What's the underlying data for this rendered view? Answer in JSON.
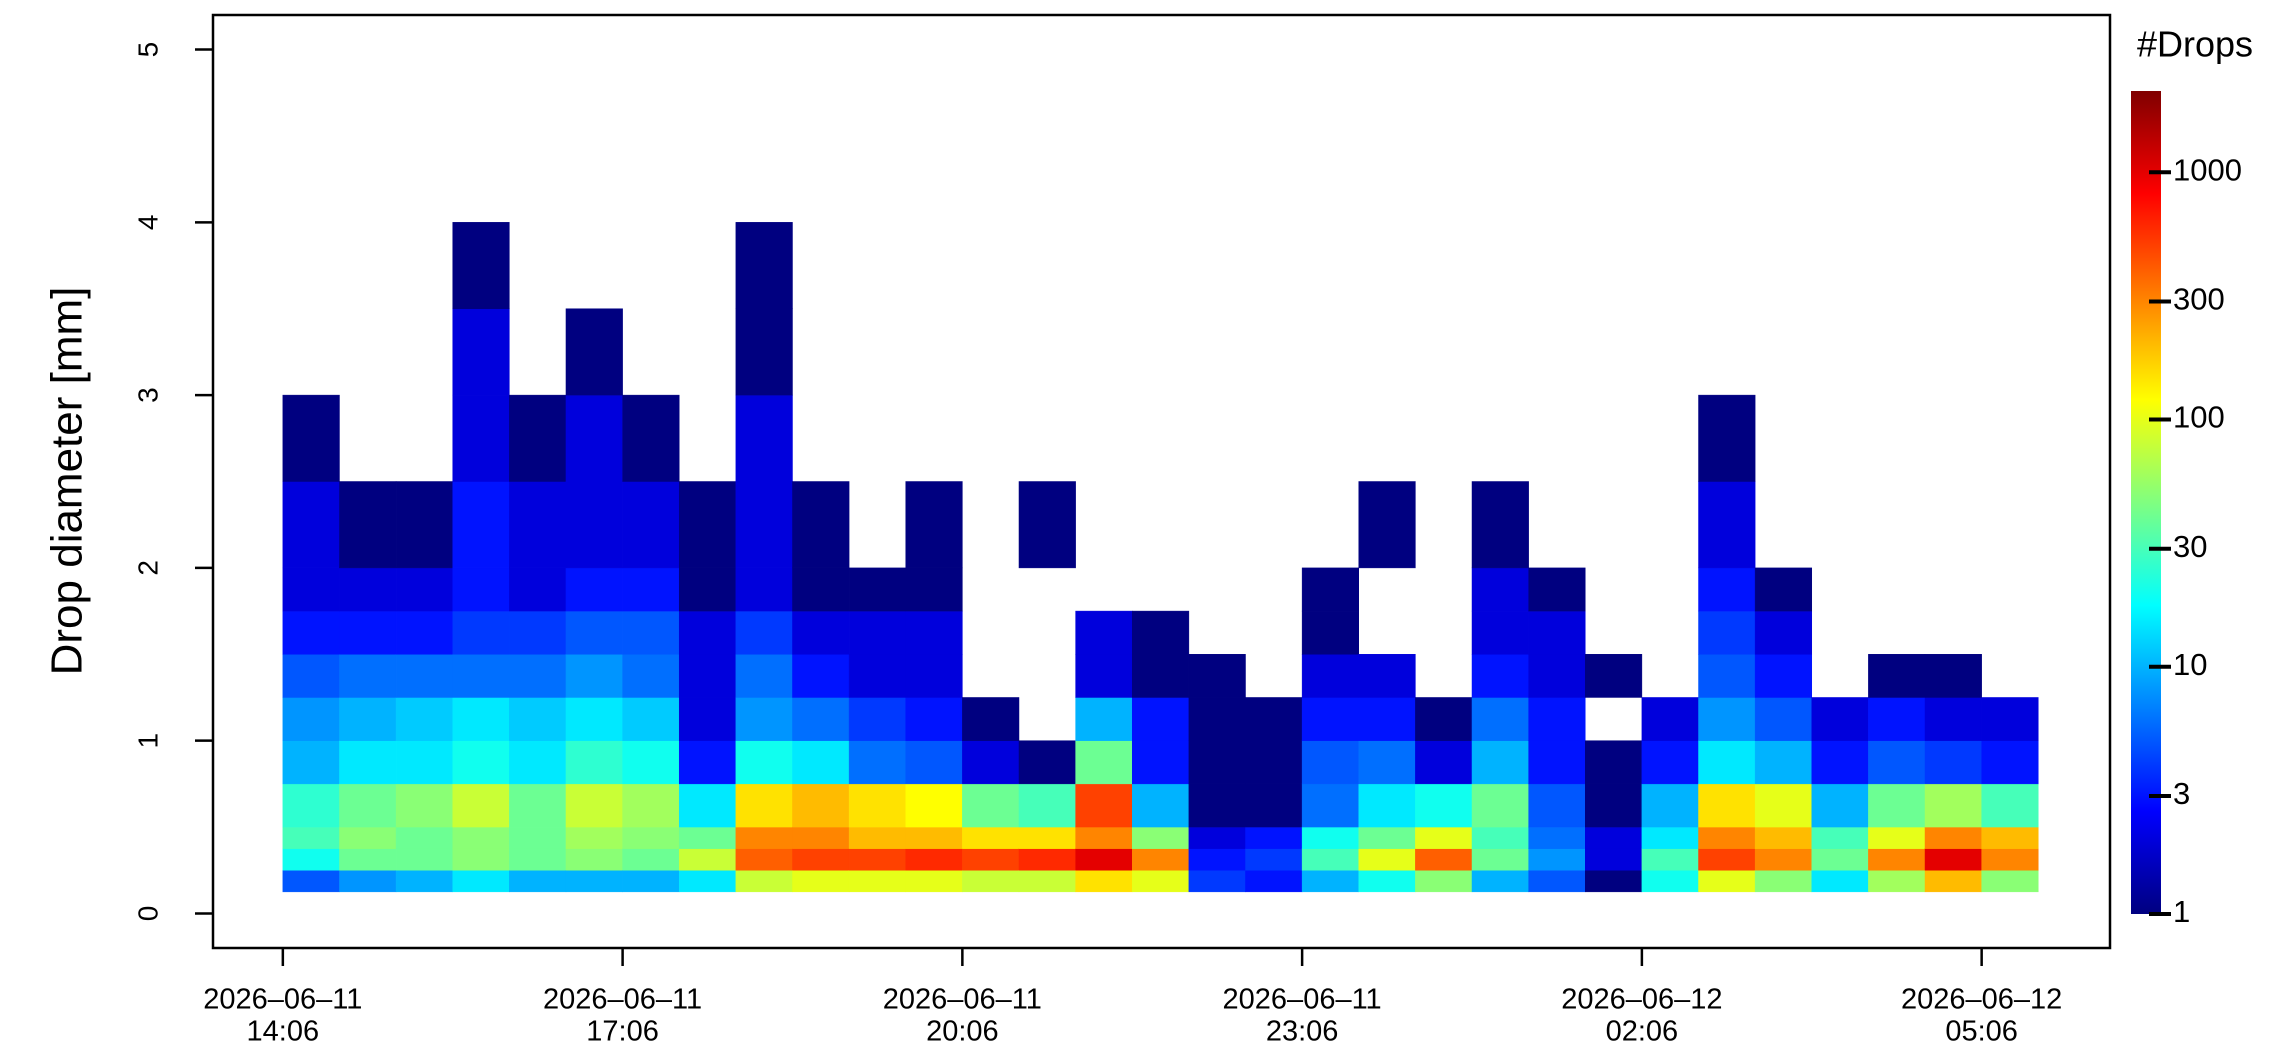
{
  "chart_data": {
    "type": "heatmap",
    "ylabel": "Drop diameter [mm]",
    "colorbar_title": "#Drops",
    "x_edges": [
      "2026-06-11 14:06",
      "2026-06-11 14:36",
      "2026-06-11 15:06",
      "2026-06-11 15:36",
      "2026-06-11 16:06",
      "2026-06-11 16:36",
      "2026-06-11 17:06",
      "2026-06-11 17:36",
      "2026-06-11 18:06",
      "2026-06-11 18:36",
      "2026-06-11 19:06",
      "2026-06-11 19:36",
      "2026-06-11 20:06",
      "2026-06-11 20:36",
      "2026-06-11 21:06",
      "2026-06-11 21:36",
      "2026-06-11 22:06",
      "2026-06-11 22:36",
      "2026-06-11 23:06",
      "2026-06-11 23:36",
      "2026-06-12 00:06",
      "2026-06-12 00:36",
      "2026-06-12 01:06",
      "2026-06-12 01:36",
      "2026-06-12 02:06",
      "2026-06-12 02:36",
      "2026-06-12 03:06",
      "2026-06-12 03:36",
      "2026-06-12 04:06",
      "2026-06-12 04:36",
      "2026-06-12 05:06",
      "2026-06-12 05:36"
    ],
    "y_bins": [
      0.125,
      0.25,
      0.375,
      0.5,
      0.75,
      1.0,
      1.25,
      1.5,
      1.75,
      2.0,
      2.5,
      3.0,
      3.5,
      4.0
    ],
    "z": [
      [
        5,
        20,
        30,
        25,
        10,
        8,
        5,
        3,
        2,
        2,
        1,
        null,
        null
      ],
      [
        8,
        40,
        50,
        40,
        15,
        10,
        6,
        3,
        2,
        1,
        null,
        null,
        null
      ],
      [
        10,
        40,
        40,
        50,
        15,
        12,
        6,
        3,
        2,
        1,
        null,
        null,
        null
      ],
      [
        15,
        50,
        50,
        80,
        20,
        15,
        6,
        4,
        3,
        3,
        2,
        2,
        1
      ],
      [
        10,
        40,
        40,
        40,
        15,
        12,
        6,
        4,
        2,
        2,
        1,
        null,
        null
      ],
      [
        10,
        50,
        60,
        80,
        25,
        15,
        8,
        5,
        3,
        2,
        2,
        1,
        null
      ],
      [
        10,
        40,
        50,
        60,
        20,
        12,
        6,
        5,
        3,
        2,
        1,
        null,
        null
      ],
      [
        15,
        80,
        40,
        15,
        3,
        2,
        2,
        2,
        1,
        1,
        null,
        null,
        null
      ],
      [
        80,
        400,
        300,
        150,
        20,
        8,
        6,
        4,
        2,
        2,
        2,
        1,
        1
      ],
      [
        100,
        500,
        300,
        200,
        15,
        6,
        3,
        2,
        1,
        1,
        null,
        null,
        null
      ],
      [
        100,
        500,
        200,
        150,
        6,
        4,
        2,
        2,
        1,
        null,
        null,
        null,
        null
      ],
      [
        100,
        600,
        200,
        120,
        5,
        3,
        2,
        2,
        1,
        1,
        null,
        null,
        null
      ],
      [
        80,
        500,
        150,
        40,
        2,
        1,
        null,
        null,
        null,
        null,
        null,
        null,
        null
      ],
      [
        80,
        600,
        150,
        30,
        1,
        null,
        null,
        null,
        null,
        1,
        null,
        null,
        null
      ],
      [
        150,
        1000,
        300,
        500,
        40,
        10,
        2,
        2,
        null,
        null,
        null,
        null,
        null
      ],
      [
        100,
        300,
        50,
        10,
        3,
        3,
        1,
        1,
        null,
        null,
        null,
        null,
        null
      ],
      [
        4,
        3,
        2,
        1,
        1,
        1,
        1,
        null,
        null,
        null,
        null,
        null,
        null
      ],
      [
        3,
        4,
        3,
        1,
        1,
        1,
        null,
        null,
        null,
        null,
        null,
        null,
        null
      ],
      [
        10,
        30,
        20,
        6,
        5,
        3,
        2,
        1,
        1,
        null,
        null,
        null,
        null
      ],
      [
        20,
        100,
        40,
        15,
        6,
        3,
        2,
        null,
        null,
        1,
        null,
        null,
        null
      ],
      [
        50,
        400,
        100,
        20,
        2,
        1,
        null,
        null,
        null,
        null,
        null,
        null,
        null
      ],
      [
        10,
        40,
        30,
        40,
        10,
        6,
        3,
        2,
        2,
        1,
        null,
        null,
        null
      ],
      [
        5,
        8,
        6,
        5,
        3,
        3,
        2,
        2,
        1,
        null,
        null,
        null,
        null
      ],
      [
        1,
        2,
        2,
        1,
        1,
        null,
        1,
        null,
        null,
        null,
        null,
        null,
        null
      ],
      [
        20,
        30,
        15,
        10,
        3,
        2,
        null,
        null,
        null,
        null,
        null,
        null,
        null
      ],
      [
        100,
        500,
        300,
        150,
        15,
        8,
        5,
        4,
        3,
        2,
        1,
        null,
        null
      ],
      [
        50,
        300,
        200,
        100,
        10,
        5,
        3,
        2,
        1,
        null,
        null,
        null,
        null
      ],
      [
        15,
        40,
        30,
        10,
        3,
        2,
        null,
        null,
        null,
        null,
        null,
        null,
        null
      ],
      [
        60,
        300,
        100,
        40,
        5,
        3,
        1,
        null,
        null,
        null,
        null,
        null,
        null
      ],
      [
        200,
        1000,
        300,
        60,
        4,
        2,
        1,
        null,
        null,
        null,
        null,
        null,
        null
      ],
      [
        50,
        300,
        200,
        30,
        3,
        2,
        null,
        null,
        null,
        null,
        null,
        null,
        null
      ]
    ],
    "xlim": [
      "2026-06-11 13:29",
      "2026-06-12 06:14"
    ],
    "xticks": [
      {
        "value": "2026-06-11 14:06",
        "label": [
          "2026–06–11",
          "14:06"
        ]
      },
      {
        "value": "2026-06-11 17:06",
        "label": [
          "2026–06–11",
          "17:06"
        ]
      },
      {
        "value": "2026-06-11 20:06",
        "label": [
          "2026–06–11",
          "20:06"
        ]
      },
      {
        "value": "2026-06-11 23:06",
        "label": [
          "2026–06–11",
          "23:06"
        ]
      },
      {
        "value": "2026-06-12 02:06",
        "label": [
          "2026–06–12",
          "02:06"
        ]
      },
      {
        "value": "2026-06-12 05:06",
        "label": [
          "2026–06–12",
          "05:06"
        ]
      }
    ],
    "ylim": [
      -0.2,
      5.2
    ],
    "yticks": [
      0,
      1,
      2,
      3,
      4,
      5
    ],
    "color_scale": "jet",
    "color_log": true,
    "clim": [
      1,
      2130
    ],
    "cticks": [
      1,
      3,
      10,
      30,
      100,
      300,
      1000
    ]
  }
}
